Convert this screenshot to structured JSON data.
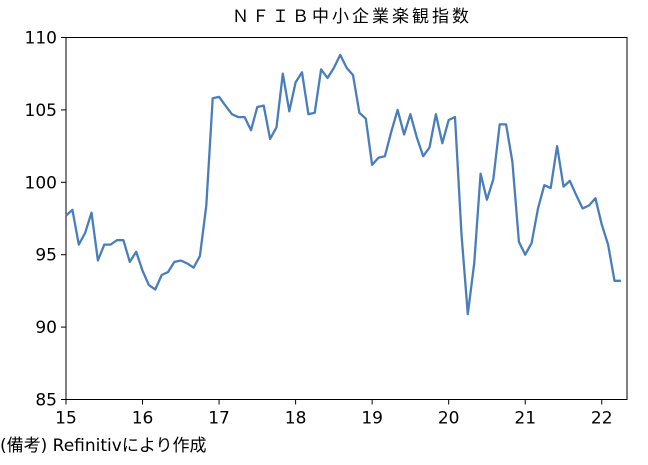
{
  "chart_data": {
    "type": "line",
    "title": "ＮＦＩＢ中小企業楽観指数",
    "xlabel": "",
    "ylabel": "",
    "ylim": [
      85,
      110
    ],
    "y_ticks": [
      85,
      90,
      95,
      100,
      105,
      110
    ],
    "x_ticks": [
      15,
      16,
      17,
      18,
      19,
      20,
      21,
      22
    ],
    "x_tick_labels": [
      "15",
      "16",
      "17",
      "18",
      "19",
      "20",
      "21",
      "22"
    ],
    "xlim": [
      15.0,
      22.33
    ],
    "grid": false,
    "legend": "none",
    "series": [
      {
        "color": "#4a7ebb",
        "x": [
          15.0,
          15.083,
          15.167,
          15.25,
          15.333,
          15.417,
          15.5,
          15.583,
          15.667,
          15.75,
          15.833,
          15.917,
          16.0,
          16.083,
          16.167,
          16.25,
          16.333,
          16.417,
          16.5,
          16.583,
          16.667,
          16.75,
          16.833,
          16.917,
          17.0,
          17.083,
          17.167,
          17.25,
          17.333,
          17.417,
          17.5,
          17.583,
          17.667,
          17.75,
          17.833,
          17.917,
          18.0,
          18.083,
          18.167,
          18.25,
          18.333,
          18.417,
          18.5,
          18.583,
          18.667,
          18.75,
          18.833,
          18.917,
          19.0,
          19.083,
          19.167,
          19.25,
          19.333,
          19.417,
          19.5,
          19.583,
          19.667,
          19.75,
          19.833,
          19.917,
          20.0,
          20.083,
          20.167,
          20.25,
          20.333,
          20.417,
          20.5,
          20.583,
          20.667,
          20.75,
          20.833,
          20.917,
          21.0,
          21.083,
          21.167,
          21.25,
          21.333,
          21.417,
          21.5,
          21.583,
          21.667,
          21.75,
          21.833,
          21.917,
          22.0,
          22.083,
          22.167,
          22.25
        ],
        "values": [
          97.7,
          98.1,
          95.7,
          96.5,
          97.9,
          94.6,
          95.7,
          95.7,
          96.0,
          96.0,
          94.5,
          95.2,
          93.9,
          92.9,
          92.6,
          93.6,
          93.8,
          94.5,
          94.6,
          94.4,
          94.1,
          94.9,
          98.4,
          105.8,
          105.9,
          105.3,
          104.7,
          104.5,
          104.5,
          103.6,
          105.2,
          105.3,
          103.0,
          103.8,
          107.5,
          104.9,
          106.9,
          107.6,
          104.7,
          104.8,
          107.8,
          107.2,
          107.9,
          108.8,
          107.9,
          107.4,
          104.8,
          104.4,
          101.2,
          101.7,
          101.8,
          103.5,
          105.0,
          103.3,
          104.7,
          103.1,
          101.8,
          102.4,
          104.7,
          102.7,
          104.3,
          104.5,
          96.4,
          90.9,
          94.4,
          100.6,
          98.8,
          100.2,
          104.0,
          104.0,
          101.4,
          95.9,
          95.0,
          95.8,
          98.2,
          99.8,
          99.6,
          102.5,
          99.7,
          100.1,
          99.1,
          98.2,
          98.4,
          98.9,
          97.1,
          95.7,
          93.2,
          93.2
        ]
      }
    ]
  },
  "caption": "(備考) Refinitivにより作成"
}
